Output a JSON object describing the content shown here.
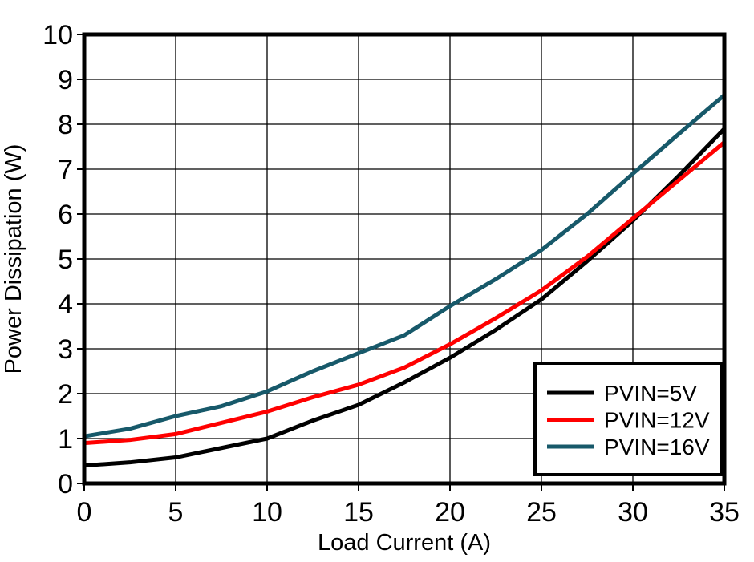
{
  "page": {
    "background": "#ffffff"
  },
  "chart_data": {
    "type": "line",
    "title": "",
    "xlabel": "Load Current (A)",
    "ylabel": "Power Dissipation (W)",
    "xlim": [
      0,
      35
    ],
    "ylim": [
      0,
      10
    ],
    "xticks": [
      0,
      5,
      10,
      15,
      20,
      25,
      30,
      35
    ],
    "yticks": [
      0,
      1,
      2,
      3,
      4,
      5,
      6,
      7,
      8,
      9,
      10
    ],
    "grid": true,
    "grid_color": "#000000",
    "axis_color": "#000000",
    "legend": {
      "position": "bottom-right",
      "background": "#ffffff",
      "border_color": "#000000"
    },
    "x": [
      0,
      2.5,
      5,
      7.5,
      10,
      12.5,
      15,
      17.5,
      20,
      22.5,
      25,
      27.5,
      30,
      32.5,
      35
    ],
    "series": [
      {
        "name": "PVIN=5V",
        "color": "#000000",
        "values": [
          0.4,
          0.47,
          0.58,
          0.79,
          1.0,
          1.4,
          1.75,
          2.25,
          2.8,
          3.42,
          4.1,
          4.95,
          5.85,
          6.85,
          7.9
        ]
      },
      {
        "name": "PVIN=12V",
        "color": "#ff0000",
        "values": [
          0.9,
          0.97,
          1.1,
          1.35,
          1.6,
          1.92,
          2.2,
          2.58,
          3.1,
          3.68,
          4.3,
          5.05,
          5.9,
          6.75,
          7.6
        ]
      },
      {
        "name": "PVIN=16V",
        "color": "#17596a",
        "values": [
          1.05,
          1.22,
          1.5,
          1.72,
          2.05,
          2.5,
          2.9,
          3.3,
          3.95,
          4.55,
          5.2,
          6.0,
          6.9,
          7.78,
          8.65
        ]
      }
    ]
  }
}
